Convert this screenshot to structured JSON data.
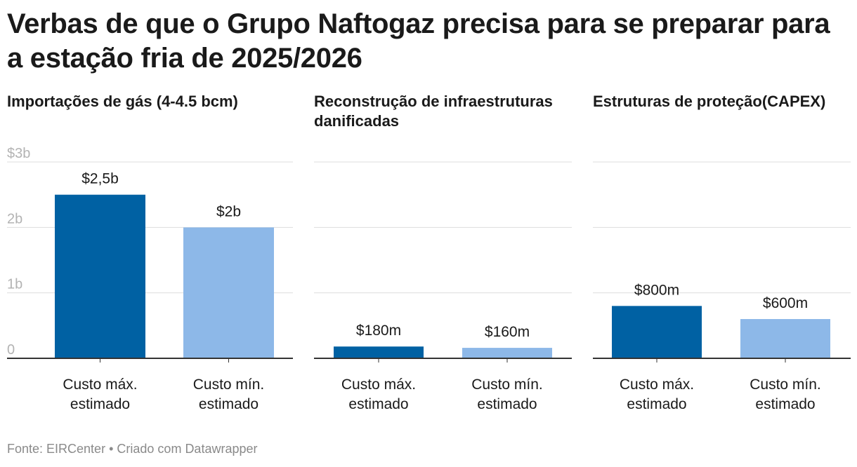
{
  "title": "Verbas de que o Grupo Naftogaz precisa para se preparar para a estação fria de 2025/2026",
  "footer": {
    "source": "Fonte: EIRCenter",
    "separator": "•",
    "credit": "Criado com Datawrapper"
  },
  "colors": {
    "max": "#0061a3",
    "min": "#8db8e8",
    "grid": "#dddddd",
    "axis_label": "#b3b3b3",
    "baseline": "#333333"
  },
  "chart_data": [
    {
      "type": "bar",
      "title": "Importações de gás (4-4.5 bcm)",
      "categories": [
        "Custo máx. estimado",
        "Custo mín. estimado"
      ],
      "values": [
        2.5,
        2.0
      ],
      "value_labels": [
        "$2,5b",
        "$2b"
      ],
      "unit": "billion USD",
      "ylim": [
        0,
        3
      ],
      "yticks": [
        0,
        1,
        2,
        3
      ],
      "ytick_labels": [
        "0",
        "1b",
        "2b",
        "$3b"
      ],
      "grid": true
    },
    {
      "type": "bar",
      "title": "Reconstrução de infraestruturas danificadas",
      "categories": [
        "Custo máx. estimado",
        "Custo mín. estimado"
      ],
      "values": [
        0.18,
        0.16
      ],
      "value_labels": [
        "$180m",
        "$160m"
      ],
      "unit": "billion USD",
      "ylim": [
        0,
        3
      ],
      "grid": true
    },
    {
      "type": "bar",
      "title": "Estruturas de proteção(CAPEX)",
      "categories": [
        "Custo máx. estimado",
        "Custo mín. estimado"
      ],
      "values": [
        0.8,
        0.6
      ],
      "value_labels": [
        "$800m",
        "$600m"
      ],
      "unit": "billion USD",
      "ylim": [
        0,
        3
      ],
      "grid": true
    }
  ]
}
